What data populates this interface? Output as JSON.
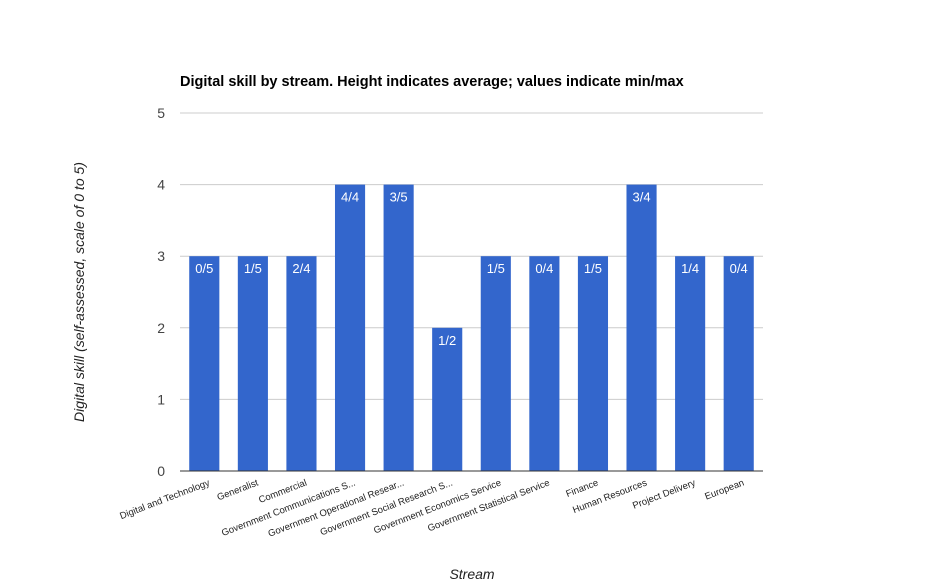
{
  "chart_data": {
    "type": "bar",
    "title": "Digital skill by stream. Height indicates average; values indicate min/max",
    "xlabel": "Stream",
    "ylabel": "Digital skill (self-assessed, scale of 0 to 5)",
    "ylim": [
      0,
      5
    ],
    "yticks": [
      0,
      1,
      2,
      3,
      4,
      5
    ],
    "grid": true,
    "legend": "none",
    "categories": [
      "Digital and Technology",
      "Generalist",
      "Commercial",
      "Government Communications S...",
      "Government Operational Resear...",
      "Government Social Research S...",
      "Government Economics Service",
      "Government Statistical Service",
      "Finance",
      "Human Resources",
      "Project Delivery",
      "European"
    ],
    "values": [
      3,
      3,
      3,
      4,
      4,
      2,
      3,
      3,
      3,
      4,
      3,
      3
    ],
    "data_labels": [
      "0/5",
      "1/5",
      "2/4",
      "4/4",
      "3/5",
      "1/2",
      "1/5",
      "0/4",
      "1/5",
      "3/4",
      "1/4",
      "0/4"
    ],
    "colors": {
      "bar": "#3366cc",
      "grid": "#cccccc",
      "axis": "#333333"
    }
  }
}
